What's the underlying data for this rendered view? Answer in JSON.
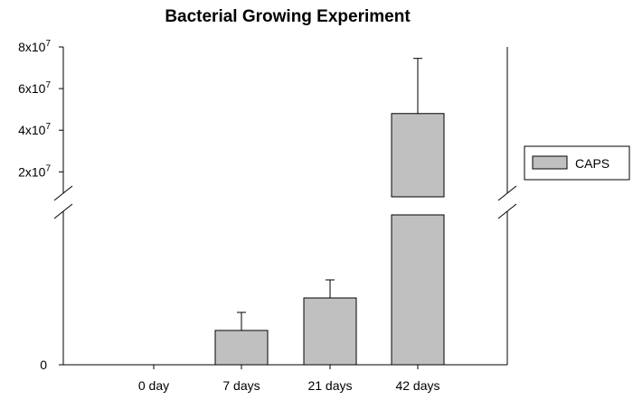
{
  "chart_data": {
    "type": "bar",
    "title": "Bacterial Growing Experiment",
    "xlabel": "",
    "ylabel": "",
    "categories": [
      "0 day",
      "7 days",
      "21 days",
      "42 days"
    ],
    "series": [
      {
        "name": "CAPS",
        "values": [
          0,
          1900000,
          3700000,
          48000000
        ],
        "errors": [
          0,
          1000000,
          1000000,
          26500000
        ]
      }
    ],
    "y_axis_break": true,
    "lower_segment": {
      "ylim": [
        0,
        8300000
      ],
      "ticks": [
        0
      ],
      "tick_labels": [
        "0"
      ]
    },
    "upper_segment": {
      "ylim": [
        8000000,
        80000000
      ],
      "ticks": [
        20000000,
        40000000,
        60000000,
        80000000
      ],
      "tick_labels": [
        {
          "mantissa": "2x10",
          "exp": "7"
        },
        {
          "mantissa": "4x10",
          "exp": "7"
        },
        {
          "mantissa": "6x10",
          "exp": "7"
        },
        {
          "mantissa": "8x10",
          "exp": "7"
        }
      ]
    },
    "bar_color": "#c0c0c0",
    "grid": false,
    "legend": {
      "placement": "right",
      "label": "CAPS"
    }
  }
}
